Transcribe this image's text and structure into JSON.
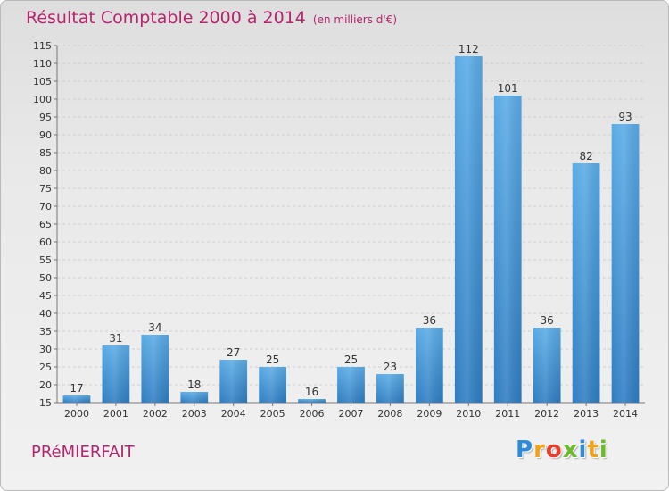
{
  "title": "Résultat Comptable 2000 à 2014",
  "subtitle": "(en milliers d'€)",
  "commune": "PRéMIERFAIT",
  "logo": {
    "letters": [
      "P",
      "r",
      "o",
      "x",
      "i",
      "t",
      "i"
    ],
    "colors": [
      "#2f8ad8",
      "#f0a21b",
      "#e83e2b",
      "#6fba2c",
      "#2f8ad8",
      "#f0a21b",
      "#6fba2c"
    ]
  },
  "colors": {
    "title": "#b5246d",
    "bar_top": "#5aabe6",
    "bar_bottom": "#2f7dc2"
  },
  "chart_data": {
    "type": "bar",
    "title": "Résultat Comptable 2000 à 2014",
    "xlabel": "",
    "ylabel": "",
    "categories": [
      "2000",
      "2001",
      "2002",
      "2003",
      "2004",
      "2005",
      "2006",
      "2007",
      "2008",
      "2009",
      "2010",
      "2011",
      "2012",
      "2013",
      "2014"
    ],
    "values": [
      17,
      31,
      34,
      18,
      27,
      25,
      16,
      25,
      23,
      36,
      112,
      101,
      36,
      82,
      93
    ],
    "ylim": [
      15,
      115
    ],
    "yticks": [
      15,
      20,
      25,
      30,
      35,
      40,
      45,
      50,
      55,
      60,
      65,
      70,
      75,
      80,
      85,
      90,
      95,
      100,
      105,
      110,
      115
    ],
    "grid": true,
    "data_labels": true
  }
}
